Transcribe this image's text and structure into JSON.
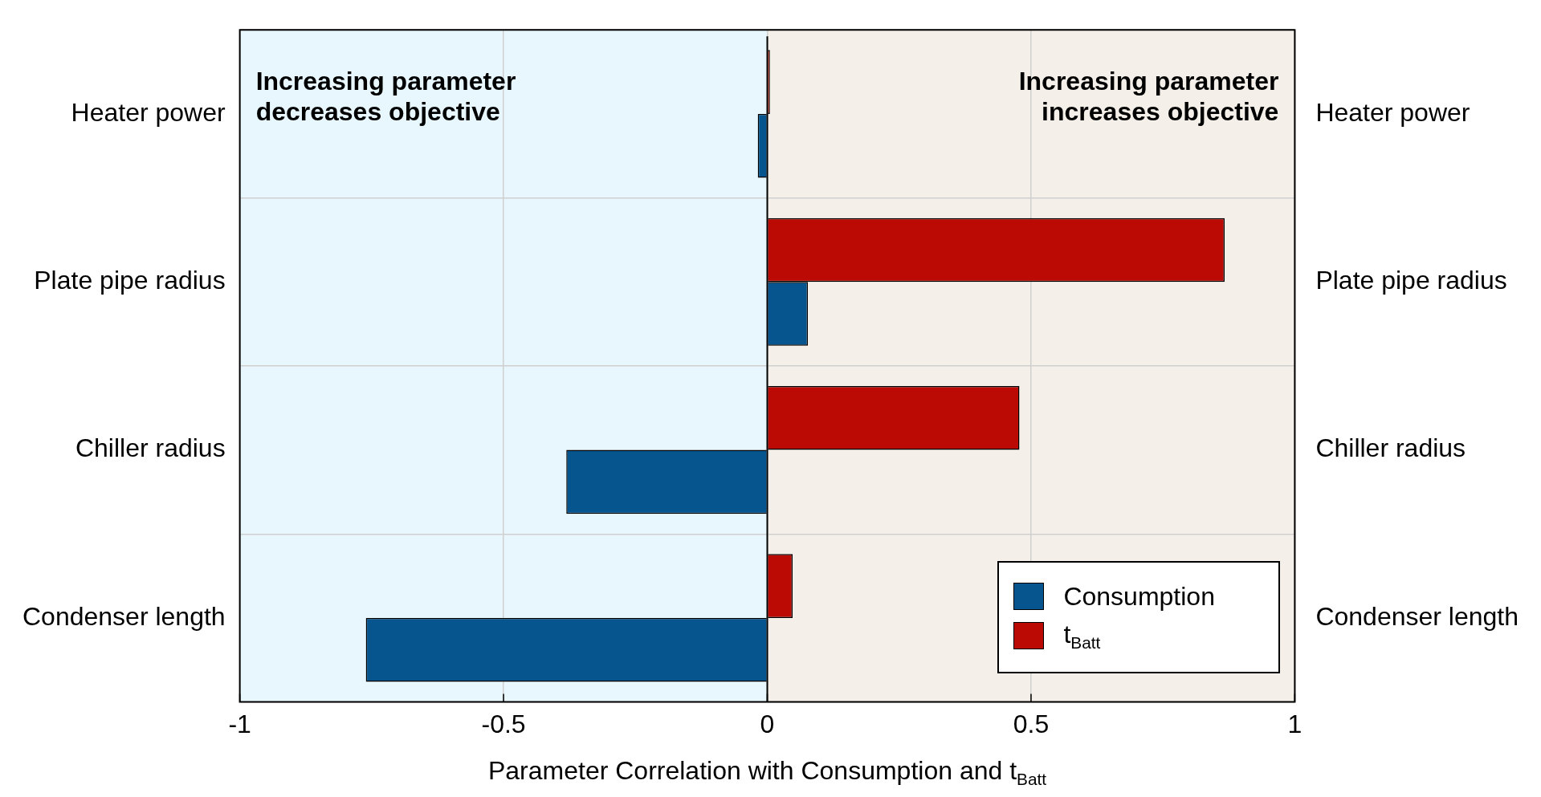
{
  "chart_data": {
    "type": "bar",
    "orientation": "horizontal",
    "categories": [
      "Heater power",
      "Plate pipe radius",
      "Chiller radius",
      "Condenser length"
    ],
    "series": [
      {
        "name": "Consumption",
        "color": "#07558f",
        "values": [
          -0.018,
          0.077,
          -0.381,
          -0.761
        ]
      },
      {
        "name": "t$_{Batt}$",
        "color": "#bb0a03",
        "values": [
          0.005,
          0.867,
          0.478,
          0.048
        ]
      }
    ],
    "xlabel": "Parameter Correlation with Consumption and t$_{Batt}$",
    "xlim": [
      -1,
      1
    ],
    "xticks": [
      -1,
      -0.5,
      0,
      0.5,
      1
    ],
    "bands": [
      {
        "axis": "x",
        "from": -1,
        "to": 0,
        "color": "#e8f7fe"
      },
      {
        "axis": "x",
        "from": 0,
        "to": 1,
        "color": "#f4f0e9"
      }
    ],
    "annotations": [
      "Increasing parameter decreases objective",
      "Increasing parameter increases objective"
    ],
    "grid": true,
    "legend": "bottom right"
  }
}
